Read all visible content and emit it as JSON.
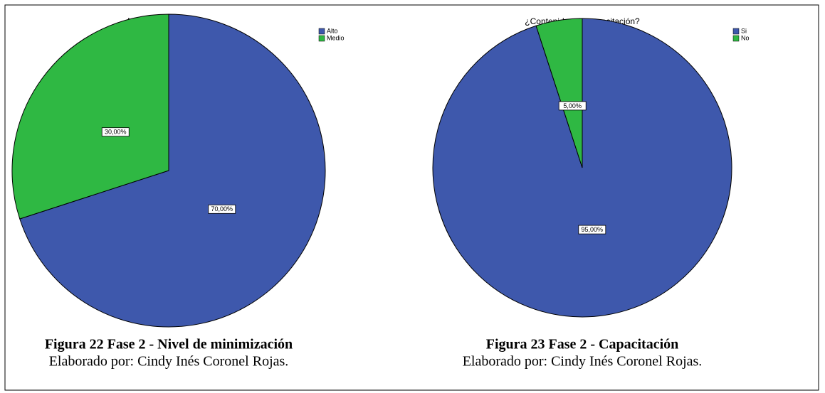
{
  "chart_data": [
    {
      "type": "pie",
      "title": "Nivel de minimización",
      "categories": [
        "Alto",
        "Medio"
      ],
      "values": [
        70,
        30
      ],
      "value_labels": [
        "70,00%",
        "30,00%"
      ],
      "colors": [
        "#3e58ac",
        "#2fb843"
      ],
      "legend": "upper right",
      "caption": "Figura 22 Fase 2 - Nivel de minimización",
      "source": "Elaborado por: Cindy Inés Coronel Rojas."
    },
    {
      "type": "pie",
      "title": "¿Contenidos de capacitación?",
      "categories": [
        "Si",
        "No"
      ],
      "values": [
        95,
        5
      ],
      "value_labels": [
        "95,00%",
        "5,00%"
      ],
      "colors": [
        "#3e58ac",
        "#2fb843"
      ],
      "legend": "upper right",
      "caption": "Figura 23 Fase 2 - Capacitación",
      "source": "Elaborado por: Cindy Inés Coronel Rojas."
    }
  ]
}
